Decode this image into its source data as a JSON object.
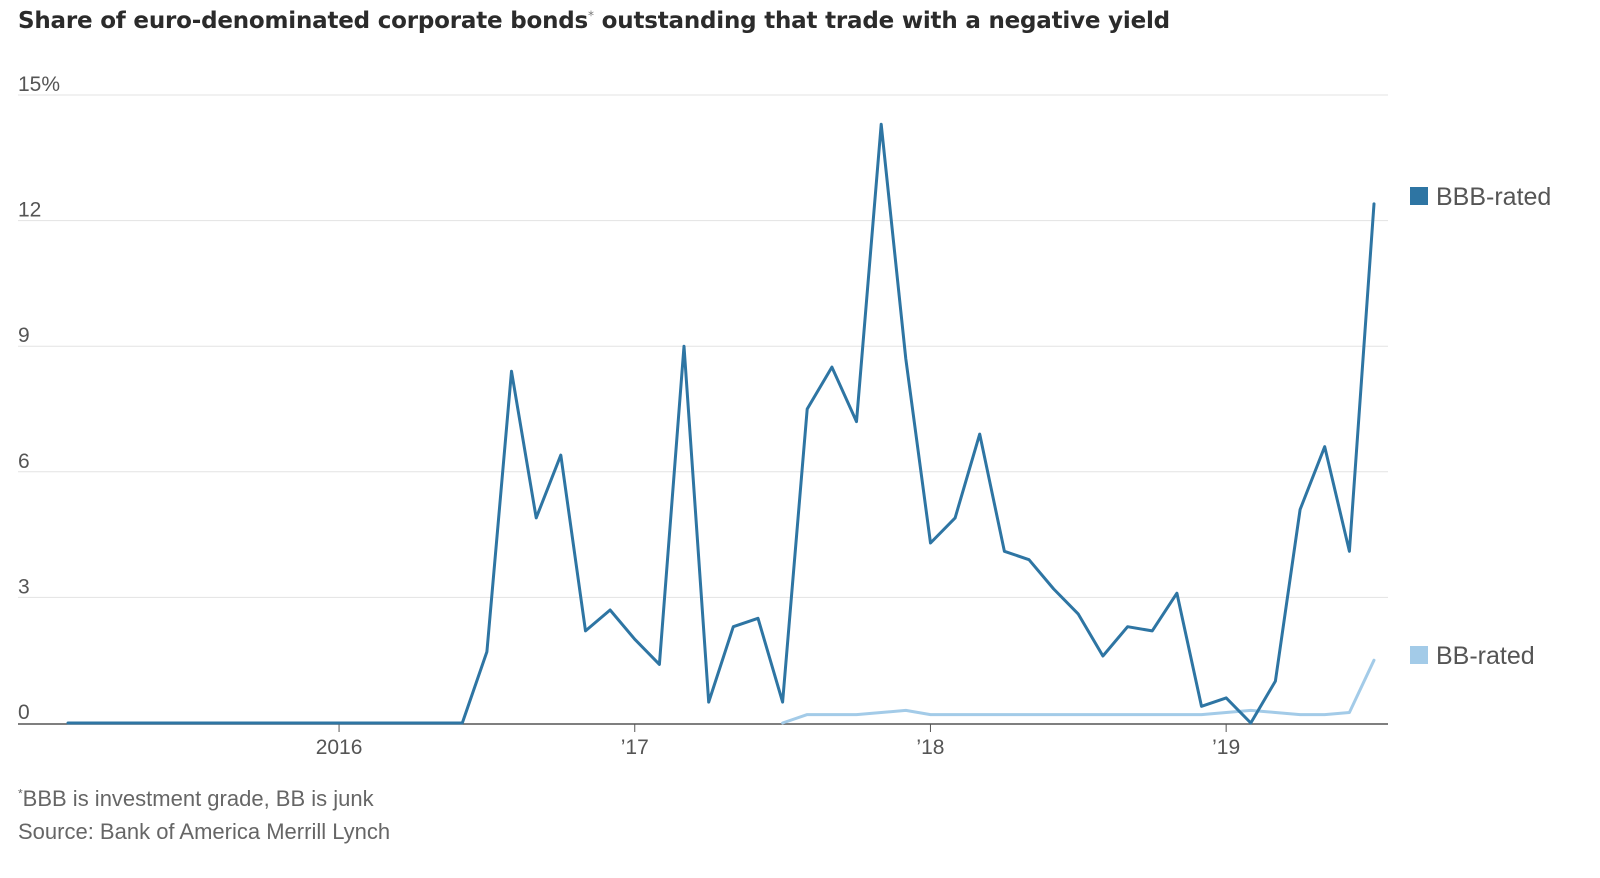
{
  "title": "Share of euro-denominated corporate bonds",
  "title_asterisk": "*",
  "title_rest": " outstanding that trade with a negative yield",
  "footnote": {
    "asterisk": "*",
    "note": "BBB is investment grade, BB is junk",
    "source": "Source: Bank of America Merrill Lynch"
  },
  "colors": {
    "bbb": "#2e75a3",
    "bb": "#a3cbe8",
    "grid": "#e3e3e3",
    "axis": "#555555"
  },
  "chart_data": {
    "type": "line",
    "y_ticks": [
      {
        "value": 0,
        "label": "0"
      },
      {
        "value": 3,
        "label": "3"
      },
      {
        "value": 6,
        "label": "6"
      },
      {
        "value": 9,
        "label": "9"
      },
      {
        "value": 12,
        "label": "12"
      },
      {
        "value": 15,
        "label": "15%"
      }
    ],
    "x_ticks": [
      {
        "value": "2016-01",
        "label": "2016"
      },
      {
        "value": "2017-01",
        "label": "’17"
      },
      {
        "value": "2018-01",
        "label": "’18"
      },
      {
        "value": "2019-01",
        "label": "’19"
      }
    ],
    "xlim": [
      "2015-02",
      "2019-07"
    ],
    "ylim": [
      0,
      15
    ],
    "grid": true,
    "legend_position": "right",
    "x": [
      "2015-02",
      "2015-03",
      "2015-04",
      "2015-05",
      "2015-06",
      "2015-07",
      "2015-08",
      "2015-09",
      "2015-10",
      "2015-11",
      "2015-12",
      "2016-01",
      "2016-02",
      "2016-03",
      "2016-04",
      "2016-05",
      "2016-06",
      "2016-07",
      "2016-08",
      "2016-09",
      "2016-10",
      "2016-11",
      "2016-12",
      "2017-01",
      "2017-02",
      "2017-03",
      "2017-04",
      "2017-05",
      "2017-06",
      "2017-07",
      "2017-08",
      "2017-09",
      "2017-10",
      "2017-11",
      "2017-12",
      "2018-01",
      "2018-02",
      "2018-03",
      "2018-04",
      "2018-05",
      "2018-06",
      "2018-07",
      "2018-08",
      "2018-09",
      "2018-10",
      "2018-11",
      "2018-12",
      "2019-01",
      "2019-02",
      "2019-03",
      "2019-04",
      "2019-05",
      "2019-06",
      "2019-07"
    ],
    "series": [
      {
        "name": "BBB-rated",
        "values": [
          0,
          0,
          0,
          0,
          0,
          0,
          0,
          0,
          0,
          0,
          0,
          0,
          0,
          0,
          0,
          0,
          0,
          1.7,
          8.4,
          4.9,
          6.4,
          2.2,
          2.7,
          2.0,
          1.4,
          9.0,
          0.5,
          2.3,
          2.5,
          0.5,
          7.5,
          8.5,
          7.2,
          14.3,
          8.7,
          4.3,
          4.9,
          6.9,
          4.1,
          3.9,
          3.2,
          2.6,
          1.6,
          2.3,
          2.2,
          3.1,
          0.4,
          0.6,
          0.0,
          1.0,
          5.1,
          6.6,
          4.1,
          12.4
        ]
      },
      {
        "name": "BB-rated",
        "values": [
          null,
          null,
          null,
          null,
          null,
          null,
          null,
          null,
          null,
          null,
          null,
          null,
          null,
          null,
          null,
          null,
          null,
          null,
          null,
          null,
          null,
          null,
          null,
          null,
          null,
          null,
          null,
          null,
          null,
          0,
          0.2,
          0.2,
          0.2,
          0.25,
          0.3,
          0.2,
          0.2,
          0.2,
          0.2,
          0.2,
          0.2,
          0.2,
          0.2,
          0.2,
          0.2,
          0.2,
          0.2,
          0.25,
          0.3,
          0.25,
          0.2,
          0.2,
          0.25,
          1.5
        ]
      }
    ]
  }
}
